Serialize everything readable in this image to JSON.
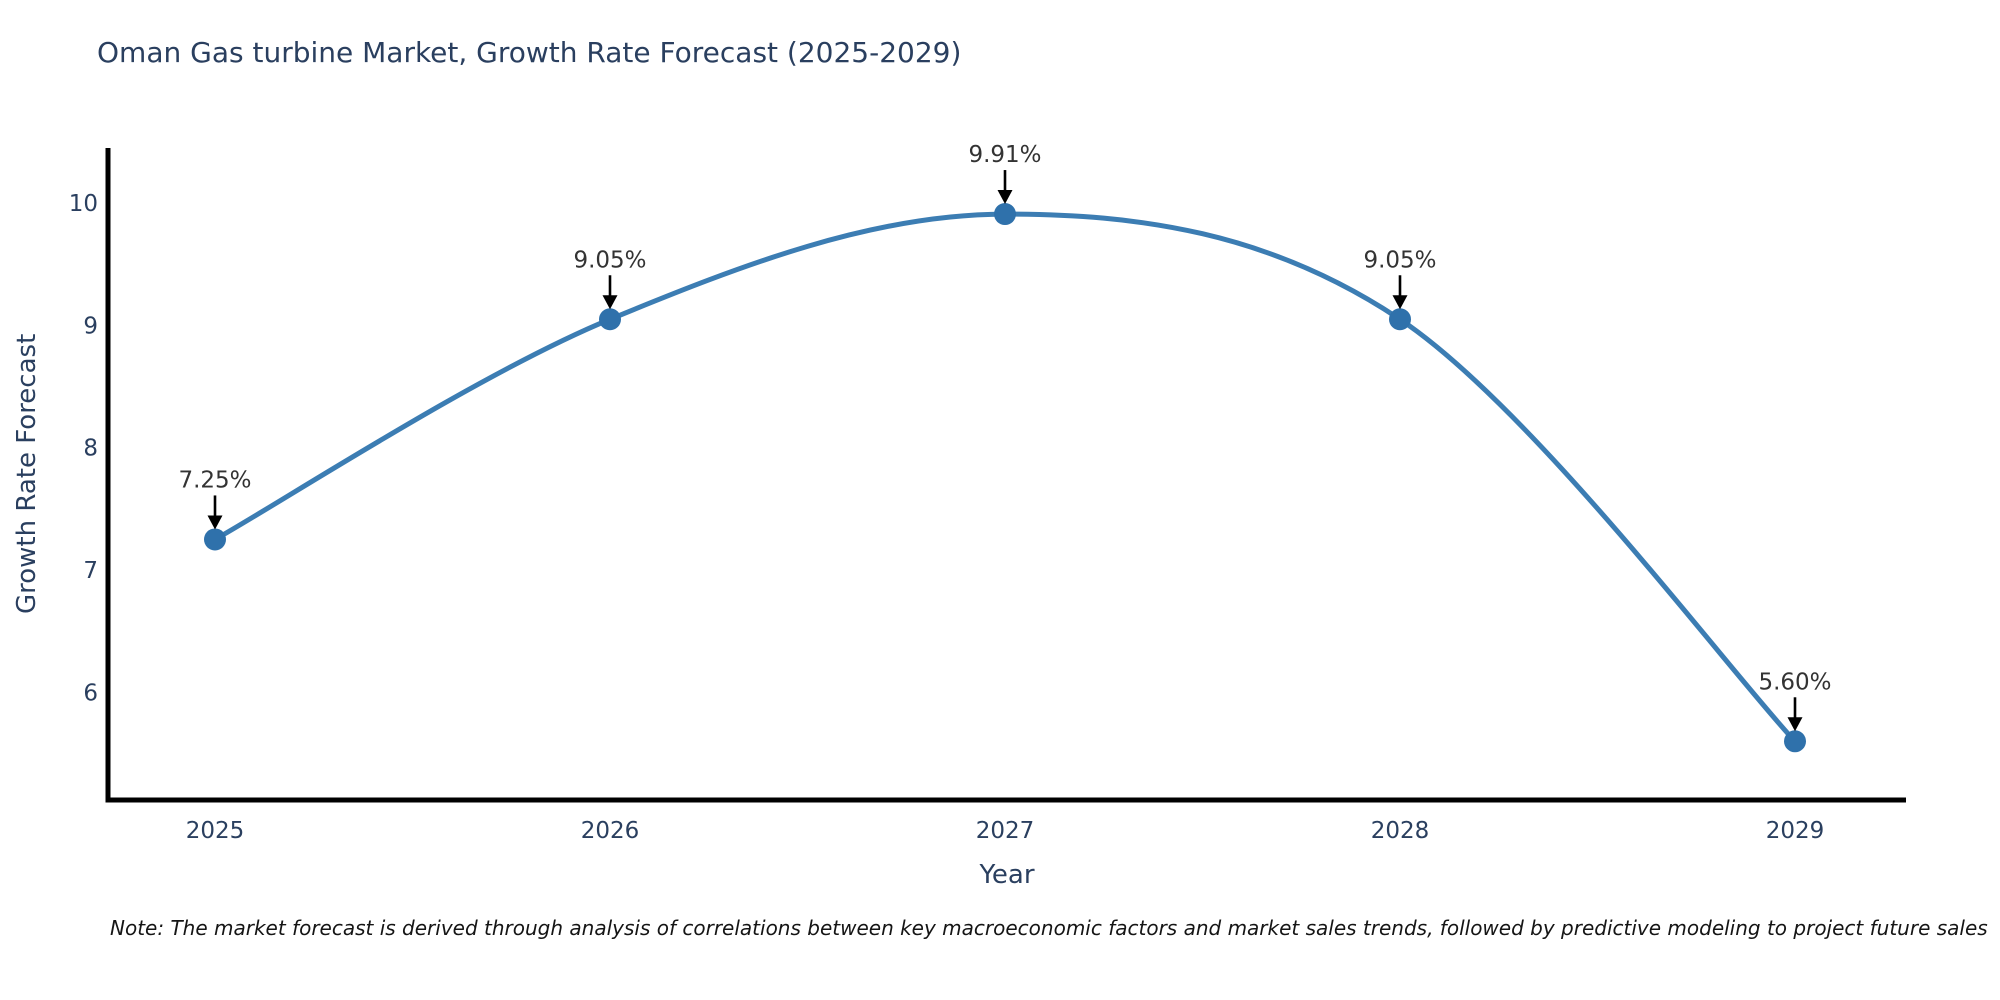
{
  "title": "Oman Gas turbine Market, Growth Rate Forecast (2025-2029)",
  "note": "Note: The market forecast is derived through analysis of correlations between key macroeconomic factors and market sales trends, followed by predictive modeling to project future sales",
  "colors": {
    "title_text": "#2a3f5f",
    "tick_text": "#2a3f5f",
    "annotation_text": "#333333",
    "line": "#3c7db3",
    "marker": "#2f71ab",
    "axis": "#000000",
    "arrow": "#000000",
    "background": "#ffffff"
  },
  "chart_data": {
    "type": "line",
    "line_shape": "spline",
    "title": "Oman Gas turbine Market, Growth Rate Forecast (2025-2029)",
    "xlabel": "Year",
    "ylabel": "Growth Rate Forecast",
    "x": [
      "2025",
      "2026",
      "2027",
      "2028",
      "2029"
    ],
    "series": [
      {
        "name": "Growth Rate Forecast",
        "values": [
          7.25,
          9.05,
          9.91,
          9.05,
          5.6
        ]
      }
    ],
    "point_labels": [
      "7.25%",
      "9.05%",
      "9.91%",
      "9.05%",
      "5.60%"
    ],
    "yticks": [
      6,
      7,
      8,
      9,
      10
    ],
    "ylim": [
      5.12,
      10.45
    ],
    "grid": false,
    "legend": false,
    "annotations": "each point labeled with percent value and a downward black arrow"
  }
}
